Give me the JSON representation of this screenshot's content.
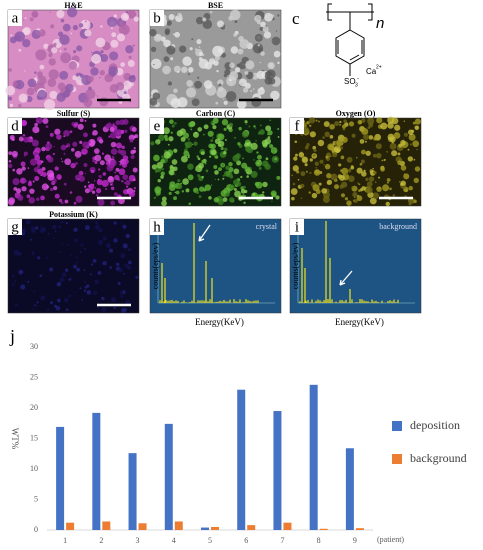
{
  "panels": [
    {
      "letter": "a",
      "title": "H&E"
    },
    {
      "letter": "b",
      "title": "BSE"
    },
    {
      "letter": "c"
    },
    {
      "letter": "d",
      "title": "Sulfur (S)"
    },
    {
      "letter": "e",
      "title": "Carbon (C)"
    },
    {
      "letter": "f",
      "title": "Oxygen (O)"
    },
    {
      "letter": "g",
      "title": "Potassium (K)"
    },
    {
      "letter": "h",
      "tag": "crystal",
      "y_label": "counts(eps/ev)",
      "x_label": "Energy(KeV)"
    },
    {
      "letter": "i",
      "tag": "background",
      "y_label": "counts(eps/ev)",
      "x_label": "Energy(KeV)"
    }
  ],
  "structure": {
    "repeat": "n",
    "cation": "Ca",
    "cation_charge": "2+",
    "group": "SO",
    "group_sub": "3",
    "group_charge": "-"
  },
  "chart_data": {
    "type": "bar",
    "letter": "j",
    "y_label": "WT%",
    "x_label": "(patient)",
    "categories": [
      "1",
      "2",
      "3",
      "4",
      "5",
      "6",
      "7",
      "8",
      "9"
    ],
    "series": [
      {
        "name": "deposition",
        "color": "#4472c4",
        "values": [
          16.9,
          19.2,
          12.6,
          17.4,
          0.4,
          23.0,
          19.5,
          23.8,
          13.4
        ]
      },
      {
        "name": "background",
        "color": "#ed7d31",
        "values": [
          1.2,
          1.4,
          1.1,
          1.4,
          0.5,
          0.8,
          1.2,
          0.2,
          0.3
        ]
      }
    ],
    "ylim": [
      0,
      30
    ],
    "yticks": [
      0,
      5,
      10,
      15,
      20,
      25,
      30
    ],
    "grid": false,
    "legend": "right"
  }
}
